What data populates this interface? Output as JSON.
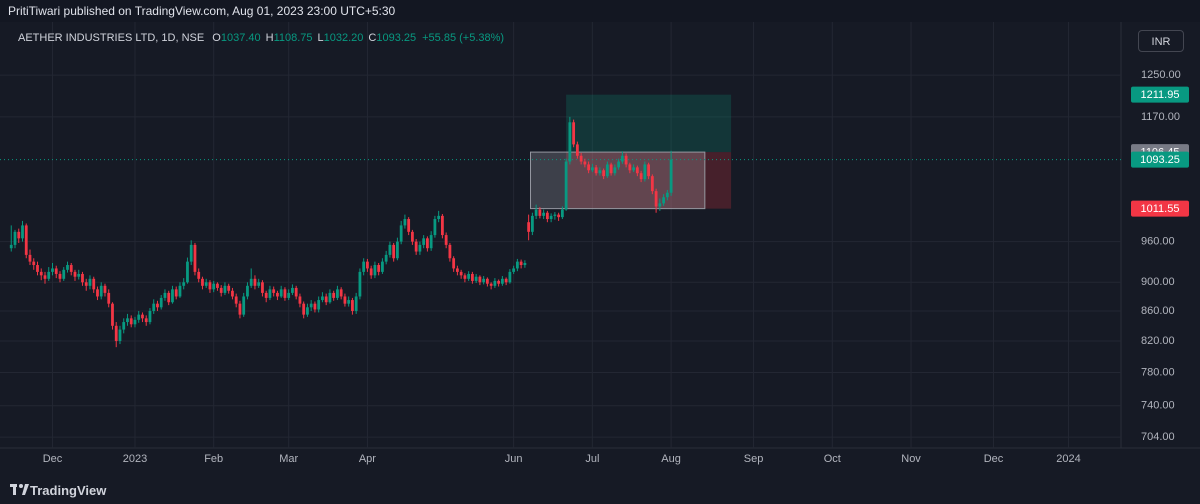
{
  "chart_data": {
    "type": "candlestick",
    "header": "PritiTiwari published on TradingView.com, Aug 01, 2023 23:00 UTC+5:30",
    "legend": {
      "symbol": "AETHER INDUSTRIES LTD, 1D, NSE",
      "ohlc": [
        {
          "key": "O",
          "value": "1037.40"
        },
        {
          "key": "H",
          "value": "1108.75"
        },
        {
          "key": "L",
          "value": "1032.20"
        },
        {
          "key": "C",
          "value": "1093.25"
        }
      ],
      "change": "+55.85 (+5.38%)"
    },
    "currency": "INR",
    "brand": "TradingView",
    "up_color": "#089981",
    "down_color": "#f23645",
    "log_scale": true,
    "grid": true,
    "ylim": [
      692,
      1360
    ],
    "yticks": [
      {
        "value": 1250,
        "label": "1250.00"
      },
      {
        "value": 1170,
        "label": "1170.00"
      },
      {
        "value": 960,
        "label": "960.00"
      },
      {
        "value": 900,
        "label": "900.00"
      },
      {
        "value": 860,
        "label": "860.00"
      },
      {
        "value": 820,
        "label": "820.00"
      },
      {
        "value": 780,
        "label": "780.00"
      },
      {
        "value": 740,
        "label": "740.00"
      },
      {
        "value": 704,
        "label": "704.00"
      }
    ],
    "xlim": [
      -3,
      296
    ],
    "xticks": [
      {
        "value": 11,
        "label": "Dec"
      },
      {
        "value": 33,
        "label": "2023"
      },
      {
        "value": 54,
        "label": "Feb"
      },
      {
        "value": 74,
        "label": "Mar"
      },
      {
        "value": 95,
        "label": "Apr"
      },
      {
        "value": 134,
        "label": "Jun"
      },
      {
        "value": 155,
        "label": "Jul"
      },
      {
        "value": 176,
        "label": "Aug"
      },
      {
        "value": 198,
        "label": "Sep"
      },
      {
        "value": 219,
        "label": "Oct"
      },
      {
        "value": 240,
        "label": "Nov"
      },
      {
        "value": 262,
        "label": "Dec"
      },
      {
        "value": 282,
        "label": "2024"
      }
    ],
    "last_price": 1093.25,
    "position": {
      "start": 148,
      "end": 192,
      "target": 1211.95,
      "entry": 1106.45,
      "stop": 1011.55
    },
    "range_box": {
      "start": 138.5,
      "end": 185
    },
    "candles": [
      [
        950,
        985,
        945,
        955
      ],
      [
        955,
        978,
        950,
        975
      ],
      [
        975,
        980,
        958,
        965
      ],
      [
        965,
        992,
        960,
        985
      ],
      [
        985,
        988,
        935,
        940
      ],
      [
        940,
        948,
        925,
        930
      ],
      [
        930,
        935,
        918,
        925
      ],
      [
        925,
        930,
        910,
        915
      ],
      [
        915,
        920,
        903,
        910
      ],
      [
        910,
        915,
        898,
        905
      ],
      [
        905,
        922,
        902,
        915
      ],
      [
        915,
        928,
        910,
        920
      ],
      [
        920,
        924,
        906,
        912
      ],
      [
        912,
        916,
        900,
        905
      ],
      [
        905,
        922,
        902,
        918
      ],
      [
        918,
        930,
        914,
        925
      ],
      [
        925,
        928,
        910,
        915
      ],
      [
        915,
        918,
        902,
        908
      ],
      [
        908,
        918,
        904,
        912
      ],
      [
        912,
        915,
        895,
        900
      ],
      [
        900,
        905,
        888,
        895
      ],
      [
        895,
        910,
        890,
        905
      ],
      [
        905,
        908,
        885,
        890
      ],
      [
        890,
        894,
        875,
        880
      ],
      [
        880,
        900,
        876,
        895
      ],
      [
        895,
        898,
        880,
        885
      ],
      [
        885,
        890,
        865,
        870
      ],
      [
        870,
        872,
        835,
        840
      ],
      [
        840,
        845,
        812,
        820
      ],
      [
        820,
        840,
        816,
        835
      ],
      [
        835,
        850,
        830,
        845
      ],
      [
        845,
        856,
        840,
        850
      ],
      [
        850,
        854,
        838,
        842
      ],
      [
        842,
        852,
        838,
        848
      ],
      [
        848,
        860,
        844,
        855
      ],
      [
        855,
        858,
        845,
        850
      ],
      [
        850,
        854,
        840,
        845
      ],
      [
        845,
        864,
        842,
        860
      ],
      [
        860,
        876,
        856,
        870
      ],
      [
        870,
        874,
        860,
        865
      ],
      [
        865,
        882,
        862,
        878
      ],
      [
        878,
        890,
        874,
        885
      ],
      [
        885,
        888,
        868,
        872
      ],
      [
        872,
        895,
        870,
        890
      ],
      [
        890,
        894,
        876,
        880
      ],
      [
        880,
        900,
        878,
        895
      ],
      [
        895,
        906,
        890,
        900
      ],
      [
        900,
        936,
        898,
        930
      ],
      [
        930,
        962,
        925,
        955
      ],
      [
        955,
        958,
        910,
        915
      ],
      [
        915,
        920,
        900,
        905
      ],
      [
        905,
        908,
        890,
        895
      ],
      [
        895,
        905,
        892,
        900
      ],
      [
        900,
        903,
        885,
        890
      ],
      [
        890,
        902,
        886,
        898
      ],
      [
        898,
        900,
        888,
        892
      ],
      [
        892,
        896,
        880,
        885
      ],
      [
        885,
        900,
        882,
        895
      ],
      [
        895,
        898,
        884,
        888
      ],
      [
        888,
        892,
        876,
        880
      ],
      [
        880,
        884,
        865,
        870
      ],
      [
        870,
        874,
        850,
        855
      ],
      [
        855,
        885,
        852,
        880
      ],
      [
        880,
        900,
        876,
        895
      ],
      [
        895,
        920,
        892,
        905
      ],
      [
        905,
        910,
        890,
        895
      ],
      [
        895,
        905,
        892,
        900
      ],
      [
        900,
        903,
        880,
        885
      ],
      [
        885,
        888,
        872,
        878
      ],
      [
        878,
        895,
        875,
        890
      ],
      [
        890,
        894,
        880,
        885
      ],
      [
        885,
        888,
        875,
        880
      ],
      [
        880,
        895,
        878,
        890
      ],
      [
        890,
        893,
        874,
        878
      ],
      [
        878,
        890,
        875,
        885
      ],
      [
        885,
        897,
        882,
        892
      ],
      [
        892,
        895,
        876,
        880
      ],
      [
        880,
        884,
        865,
        870
      ],
      [
        870,
        873,
        850,
        855
      ],
      [
        855,
        870,
        852,
        865
      ],
      [
        865,
        875,
        860,
        870
      ],
      [
        870,
        873,
        858,
        862
      ],
      [
        862,
        880,
        858,
        875
      ],
      [
        875,
        886,
        872,
        880
      ],
      [
        880,
        884,
        868,
        872
      ],
      [
        872,
        890,
        870,
        885
      ],
      [
        885,
        888,
        874,
        878
      ],
      [
        878,
        895,
        875,
        890
      ],
      [
        890,
        893,
        876,
        880
      ],
      [
        880,
        884,
        866,
        870
      ],
      [
        870,
        880,
        866,
        875
      ],
      [
        875,
        878,
        855,
        860
      ],
      [
        860,
        885,
        856,
        880
      ],
      [
        880,
        920,
        876,
        915
      ],
      [
        915,
        935,
        910,
        930
      ],
      [
        930,
        934,
        915,
        920
      ],
      [
        920,
        924,
        905,
        910
      ],
      [
        910,
        930,
        906,
        925
      ],
      [
        925,
        928,
        910,
        915
      ],
      [
        915,
        935,
        912,
        930
      ],
      [
        930,
        946,
        926,
        940
      ],
      [
        940,
        960,
        936,
        955
      ],
      [
        955,
        958,
        930,
        935
      ],
      [
        935,
        966,
        932,
        960
      ],
      [
        960,
        992,
        956,
        985
      ],
      [
        985,
        1002,
        980,
        995
      ],
      [
        995,
        998,
        970,
        975
      ],
      [
        975,
        978,
        955,
        960
      ],
      [
        960,
        964,
        940,
        945
      ],
      [
        945,
        960,
        940,
        955
      ],
      [
        955,
        970,
        950,
        965
      ],
      [
        965,
        968,
        945,
        950
      ],
      [
        950,
        976,
        946,
        970
      ],
      [
        970,
        1000,
        966,
        995
      ],
      [
        995,
        1008,
        990,
        1000
      ],
      [
        1000,
        1003,
        965,
        970
      ],
      [
        970,
        974,
        950,
        955
      ],
      [
        955,
        958,
        930,
        935
      ],
      [
        935,
        938,
        915,
        920
      ],
      [
        920,
        924,
        910,
        915
      ],
      [
        915,
        918,
        905,
        910
      ],
      [
        910,
        913,
        900,
        905
      ],
      [
        905,
        916,
        902,
        912
      ],
      [
        912,
        915,
        898,
        902
      ],
      [
        902,
        912,
        899,
        908
      ],
      [
        908,
        910,
        896,
        900
      ],
      [
        900,
        909,
        897,
        905
      ],
      [
        905,
        907,
        894,
        898
      ],
      [
        898,
        900,
        890,
        895
      ],
      [
        895,
        906,
        892,
        902
      ],
      [
        902,
        904,
        894,
        898
      ],
      [
        898,
        909,
        895,
        905
      ],
      [
        905,
        907,
        896,
        900
      ],
      [
        900,
        919,
        898,
        915
      ],
      [
        915,
        924,
        912,
        920
      ],
      [
        920,
        934,
        916,
        930
      ],
      [
        930,
        933,
        920,
        925
      ],
      [
        925,
        932,
        921,
        928
      ],
      [
        990,
        1002,
        962,
        975
      ],
      [
        975,
        1005,
        970,
        1000
      ],
      [
        1000,
        1018,
        995,
        1010
      ],
      [
        1010,
        1014,
        996,
        1000
      ],
      [
        1000,
        1010,
        995,
        1005
      ],
      [
        1005,
        1008,
        990,
        995
      ],
      [
        995,
        1004,
        990,
        1000
      ],
      [
        1000,
        1006,
        994,
        1002
      ],
      [
        1002,
        1005,
        992,
        998
      ],
      [
        998,
        1015,
        995,
        1010
      ],
      [
        1010,
        1095,
        1008,
        1090
      ],
      [
        1090,
        1170,
        1085,
        1160
      ],
      [
        1160,
        1165,
        1115,
        1120
      ],
      [
        1120,
        1125,
        1095,
        1100
      ],
      [
        1100,
        1105,
        1085,
        1090
      ],
      [
        1090,
        1095,
        1080,
        1085
      ],
      [
        1085,
        1090,
        1070,
        1075
      ],
      [
        1075,
        1086,
        1072,
        1080
      ],
      [
        1080,
        1084,
        1066,
        1070
      ],
      [
        1070,
        1080,
        1066,
        1075
      ],
      [
        1075,
        1078,
        1060,
        1065
      ],
      [
        1065,
        1090,
        1062,
        1085
      ],
      [
        1085,
        1088,
        1066,
        1070
      ],
      [
        1070,
        1085,
        1066,
        1080
      ],
      [
        1080,
        1095,
        1076,
        1090
      ],
      [
        1090,
        1108,
        1086,
        1100
      ],
      [
        1100,
        1104,
        1080,
        1085
      ],
      [
        1085,
        1088,
        1070,
        1075
      ],
      [
        1075,
        1085,
        1072,
        1080
      ],
      [
        1080,
        1083,
        1065,
        1070
      ],
      [
        1070,
        1074,
        1055,
        1060
      ],
      [
        1060,
        1090,
        1056,
        1085
      ],
      [
        1085,
        1088,
        1060,
        1065
      ],
      [
        1065,
        1068,
        1035,
        1040
      ],
      [
        1040,
        1044,
        1005,
        1015
      ],
      [
        1015,
        1028,
        1008,
        1020
      ],
      [
        1020,
        1035,
        1016,
        1030
      ],
      [
        1030,
        1042,
        1025,
        1037.4
      ],
      [
        1037.4,
        1108.75,
        1032.2,
        1093.25
      ]
    ]
  }
}
